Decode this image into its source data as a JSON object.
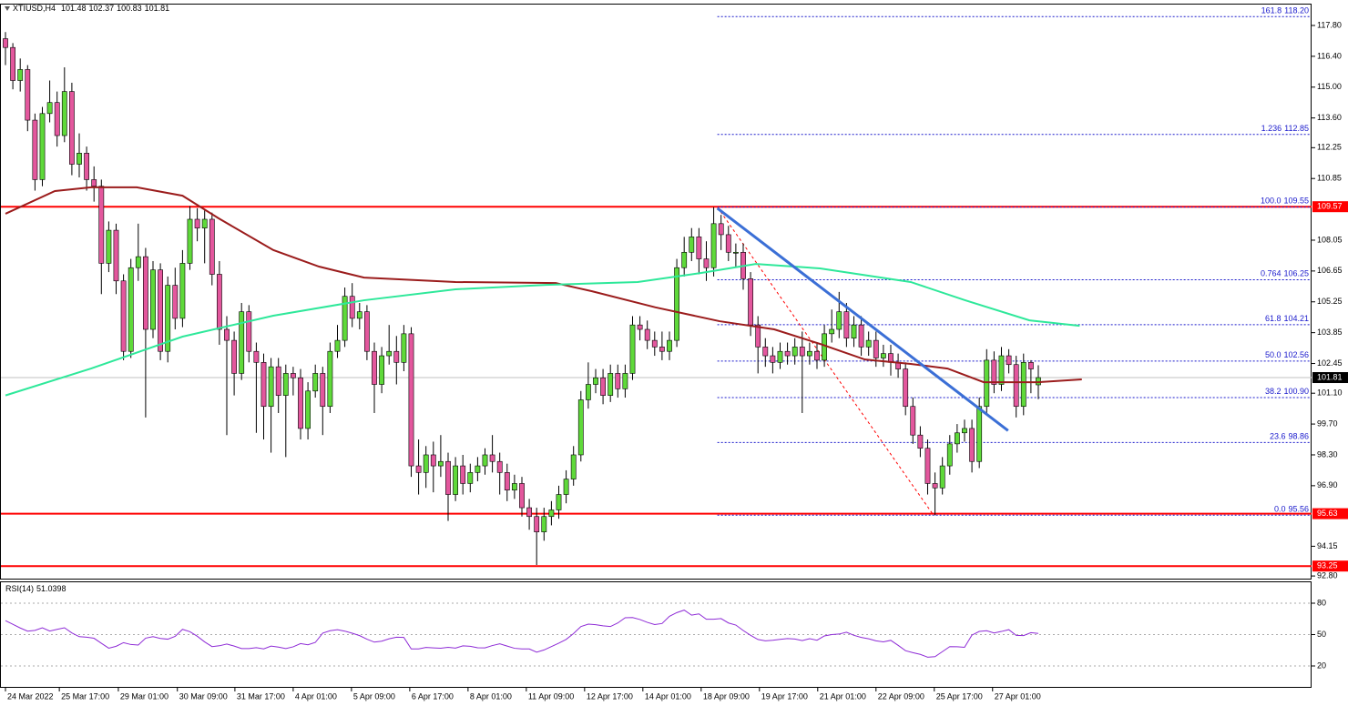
{
  "chart_data": [
    {
      "type": "candlestick",
      "symbol": "XTIUSD,H4",
      "open": [
        117.2,
        116.8,
        115.3,
        115.8,
        113.5,
        110.8,
        113.8,
        114.3,
        112.8,
        114.8,
        111.5,
        112.0,
        110.8,
        110.5,
        107.0,
        108.5,
        106.2,
        103.0,
        106.8,
        107.3,
        104.0,
        106.7,
        103.0,
        106.0,
        104.5,
        107.0,
        109.0,
        108.6,
        109.0,
        106.5,
        104.0,
        103.5,
        102.0,
        104.8,
        103.0,
        102.5,
        100.5,
        102.3,
        101.0,
        102.0,
        101.8,
        99.5,
        101.2,
        102.0,
        100.5,
        103.0,
        103.5,
        105.5,
        104.5,
        104.8,
        103.0,
        101.5,
        102.8,
        103.0,
        102.5,
        103.8,
        97.8,
        97.5,
        98.3,
        97.8,
        98.0,
        96.5,
        97.8,
        97.0,
        97.5,
        97.8,
        98.3,
        98.0,
        97.5,
        96.7,
        97.0,
        95.9,
        95.5,
        94.8,
        95.5,
        95.8,
        96.5,
        97.2,
        98.3,
        100.8,
        101.5,
        101.8,
        101.0,
        102.0,
        101.3,
        102.0,
        104.2,
        104.0,
        103.5,
        103.2,
        103.0,
        103.5,
        106.8,
        107.5,
        108.2,
        107.2,
        106.8,
        108.8,
        108.3,
        107.5,
        107.5,
        106.3,
        104.2,
        103.2,
        102.8,
        102.5,
        103.0,
        102.8,
        103.2,
        102.8,
        103.0,
        102.6,
        103.8,
        104.0,
        104.8,
        103.6,
        104.2,
        103.2,
        103.5,
        102.7,
        102.9,
        102.5,
        102.2,
        100.5,
        99.2,
        98.6,
        97.0,
        96.8,
        97.8,
        98.8,
        99.3,
        99.5,
        98.0,
        100.5,
        102.6,
        101.5,
        102.8,
        102.4,
        100.5,
        102.5,
        101.48
      ],
      "high": [
        117.5,
        117.0,
        116.3,
        116.0,
        113.8,
        114.1,
        115.3,
        114.8,
        115.9,
        115.2,
        112.9,
        112.3,
        111.4,
        110.8,
        108.9,
        108.8,
        106.5,
        107.2,
        108.8,
        107.7,
        107.1,
        107.0,
        106.4,
        106.8,
        107.6,
        109.6,
        109.5,
        109.4,
        109.3,
        107.1,
        104.6,
        103.9,
        105.2,
        105.1,
        103.4,
        102.9,
        102.7,
        102.7,
        102.4,
        102.3,
        102.2,
        101.6,
        102.4,
        102.3,
        103.4,
        104.2,
        105.9,
        106.1,
        105.2,
        105.1,
        103.4,
        103.2,
        104.2,
        103.7,
        104.2,
        104.1,
        99.0,
        98.7,
        98.9,
        99.2,
        98.4,
        98.2,
        98.3,
        97.9,
        98.2,
        98.6,
        99.2,
        98.4,
        97.9,
        97.4,
        97.3,
        96.3,
        95.9,
        95.9,
        96.2,
        96.9,
        97.6,
        98.7,
        101.2,
        102.5,
        102.2,
        102.2,
        102.4,
        102.4,
        102.4,
        104.6,
        104.6,
        104.4,
        103.9,
        103.9,
        103.9,
        107.2,
        108.2,
        108.6,
        108.6,
        108.0,
        109.55,
        109.2,
        108.7,
        107.9,
        107.9,
        106.6,
        104.6,
        103.6,
        103.2,
        103.4,
        103.4,
        103.6,
        103.9,
        103.4,
        103.4,
        104.2,
        104.9,
        105.7,
        105.2,
        104.6,
        104.6,
        103.9,
        103.9,
        103.3,
        103.3,
        102.9,
        102.5,
        100.9,
        99.6,
        99.0,
        97.5,
        98.2,
        99.2,
        99.7,
        99.9,
        99.9,
        100.9,
        103.1,
        103.0,
        103.2,
        103.1,
        102.8,
        102.9,
        102.6,
        102.37
      ],
      "low": [
        116.0,
        114.9,
        114.8,
        113.0,
        110.3,
        110.5,
        113.4,
        112.3,
        112.5,
        111.0,
        110.9,
        110.3,
        109.8,
        105.6,
        106.6,
        105.6,
        102.6,
        102.7,
        106.2,
        100.0,
        103.6,
        102.6,
        102.5,
        104.0,
        104.1,
        106.7,
        108.0,
        107.0,
        106.0,
        103.3,
        99.2,
        101.0,
        101.7,
        102.5,
        99.3,
        99.0,
        98.4,
        100.2,
        98.2,
        101.0,
        99.0,
        99.0,
        100.9,
        99.2,
        100.2,
        102.7,
        103.2,
        104.1,
        104.0,
        102.6,
        100.2,
        101.1,
        102.4,
        101.5,
        102.1,
        97.3,
        96.5,
        96.8,
        96.6,
        97.3,
        95.3,
        96.2,
        96.5,
        96.6,
        97.1,
        97.4,
        97.5,
        96.5,
        96.2,
        96.3,
        95.5,
        94.9,
        93.3,
        94.4,
        95.1,
        95.4,
        96.1,
        96.9,
        98.0,
        100.4,
        101.1,
        100.6,
        100.7,
        100.9,
        100.9,
        101.7,
        103.5,
        103.1,
        102.8,
        102.6,
        102.6,
        103.2,
        106.4,
        107.1,
        106.5,
        106.2,
        106.4,
        107.6,
        107.1,
        106.8,
        105.8,
        103.7,
        102.0,
        102.3,
        102.0,
        102.2,
        102.4,
        102.4,
        100.2,
        102.4,
        102.2,
        102.3,
        103.4,
        103.6,
        103.2,
        103.2,
        102.8,
        102.8,
        102.3,
        102.3,
        101.9,
        101.8,
        100.1,
        98.8,
        98.2,
        96.5,
        95.56,
        96.5,
        97.4,
        98.4,
        98.9,
        97.5,
        97.7,
        100.2,
        101.1,
        101.2,
        102.0,
        100.0,
        100.1,
        101.1,
        100.83
      ],
      "close": [
        116.8,
        115.3,
        115.8,
        113.5,
        110.8,
        113.8,
        114.3,
        112.8,
        114.8,
        111.5,
        112.0,
        110.8,
        110.5,
        107.0,
        108.5,
        106.2,
        103.0,
        106.8,
        107.3,
        104.0,
        106.7,
        103.0,
        106.0,
        104.5,
        107.0,
        109.0,
        108.6,
        109.0,
        106.5,
        104.0,
        103.5,
        102.0,
        104.8,
        103.0,
        102.5,
        100.5,
        102.3,
        101.0,
        102.0,
        101.8,
        99.5,
        101.2,
        102.0,
        100.5,
        103.0,
        103.5,
        105.5,
        104.5,
        104.8,
        103.0,
        101.5,
        102.8,
        103.0,
        102.5,
        103.8,
        97.8,
        97.5,
        98.3,
        97.8,
        98.0,
        96.5,
        97.8,
        97.0,
        97.5,
        97.8,
        98.3,
        98.0,
        97.5,
        96.7,
        97.0,
        95.9,
        95.5,
        94.8,
        95.5,
        95.8,
        96.5,
        97.2,
        98.3,
        100.8,
        101.5,
        101.8,
        101.0,
        102.0,
        101.3,
        102.0,
        104.2,
        104.0,
        103.5,
        103.2,
        103.0,
        103.5,
        106.8,
        107.5,
        108.2,
        107.2,
        106.8,
        108.8,
        108.3,
        107.5,
        107.5,
        106.3,
        104.2,
        103.2,
        102.8,
        102.5,
        103.0,
        102.8,
        103.2,
        102.8,
        103.0,
        102.6,
        103.8,
        104.0,
        104.8,
        103.6,
        104.2,
        103.2,
        103.5,
        102.7,
        102.9,
        102.5,
        102.2,
        100.5,
        99.2,
        98.6,
        97.0,
        96.8,
        97.8,
        98.8,
        99.3,
        99.5,
        98.0,
        100.5,
        102.6,
        101.5,
        102.8,
        102.4,
        100.5,
        102.5,
        102.2,
        101.81
      ],
      "bull_color": "#5fd93a",
      "bear_color": "#e3579d",
      "xlim": [
        -0.741,
        177.04
      ],
      "ylim": [
        92.68,
        118.75
      ],
      "yticks": [
        {
          "value": 117.8,
          "label": "117.80"
        },
        {
          "value": 116.4,
          "label": "116.40"
        },
        {
          "value": 115,
          "label": "115.00"
        },
        {
          "value": 113.6,
          "label": "113.60"
        },
        112.25,
        110.85,
        108.05,
        106.65,
        105.25,
        103.85,
        102.45,
        {
          "value": 101.1,
          "label": "101.10"
        },
        {
          "value": 99.7,
          "label": "99.70"
        },
        {
          "value": 98.3,
          "label": "98.30"
        },
        {
          "value": 96.9,
          "label": "96.90"
        },
        94.15,
        {
          "value": 92.8,
          "label": "92.80"
        }
      ],
      "xticks": [
        {
          "value": 0,
          "label": "24 Mar 2022"
        },
        {
          "value": 7.3,
          "label": "25 Mar 17:00"
        },
        {
          "value": 15.3,
          "label": "29 Mar 01:00"
        },
        {
          "value": 23.3,
          "label": "30 Mar 09:00"
        },
        {
          "value": 31.1,
          "label": "31 Mar 17:00"
        },
        {
          "value": 39,
          "label": "4 Apr 01:00"
        },
        {
          "value": 46.9,
          "label": "5 Apr 09:00"
        },
        {
          "value": 54.8,
          "label": "6 Apr 17:00"
        },
        {
          "value": 62.7,
          "label": "8 Apr 01:00"
        },
        {
          "value": 70.6,
          "label": "11 Apr 09:00"
        },
        {
          "value": 78.5,
          "label": "12 Apr 17:00"
        },
        {
          "value": 86.4,
          "label": "14 Apr 01:00"
        },
        {
          "value": 94.3,
          "label": "18 Apr 09:00"
        },
        {
          "value": 102.2,
          "label": "19 Apr 17:00"
        },
        {
          "value": 110.1,
          "label": "21 Apr 01:00"
        },
        {
          "value": 118,
          "label": "22 Apr 09:00"
        },
        {
          "value": 125.9,
          "label": "25 Apr 17:00"
        },
        {
          "value": 133.8,
          "label": "27 Apr 01:00"
        }
      ],
      "overlays": [
        {
          "type": "line",
          "color": "#9b1c1c",
          "x": [
            0,
            6.7,
            11.6,
            17.8,
            24,
            28.9,
            36.3,
            42.5,
            48.6,
            61,
            74.6,
            79.5,
            88.1,
            96.8,
            104.2,
            110.4,
            116.5,
            122.7,
            127.7,
            132.6,
            140,
            145.9
          ],
          "values": [
            109.25,
            110.28,
            110.45,
            110.45,
            110.07,
            109.04,
            107.6,
            106.85,
            106.35,
            106.15,
            106.1,
            105.73,
            105.0,
            104.37,
            104.0,
            103.34,
            102.63,
            102.43,
            102.22,
            101.6,
            101.6,
            101.73
          ]
        },
        {
          "type": "line",
          "color": "#2ee89a",
          "x": [
            0,
            11.6,
            24,
            36.3,
            48.6,
            61,
            73.3,
            85.7,
            94.3,
            101.7,
            110.4,
            122.7,
            130.1,
            138.8,
            145.6
          ],
          "values": [
            101.0,
            102.22,
            103.67,
            104.62,
            105.32,
            105.82,
            106.02,
            106.15,
            106.56,
            106.97,
            106.77,
            106.15,
            105.32,
            104.41,
            104.16
          ]
        }
      ],
      "hlines": [
        {
          "value": 109.57,
          "color": "#ff0000"
        },
        {
          "value": 95.63,
          "color": "#ff0000"
        },
        {
          "value": 93.25,
          "color": "#ff0000"
        }
      ],
      "price_line": {
        "value": 101.81,
        "color": "#c0c0c0"
      },
      "trendline": {
        "x": [
          96.5,
          135.9
        ],
        "values": [
          109.5,
          99.4
        ],
        "color": "#3b6fd6"
      },
      "fib_line": {
        "x": [
          96.5,
          125.8
        ],
        "values": [
          109.55,
          95.56
        ],
        "color": "#ff0000"
      },
      "fib_color": "#1a1acc",
      "fib_levels": [
        {
          "level": "161.8",
          "price": {
            "value": 118.2,
            "label": "118.20"
          }
        },
        {
          "level": "1.236",
          "price": 112.85
        },
        {
          "level": "100.0",
          "price": 109.55
        },
        {
          "level": "0.764",
          "price": 106.25
        },
        {
          "level": "61.8",
          "price": 104.21
        },
        {
          "level": "50.0",
          "price": 102.56
        },
        {
          "level": "38.2",
          "price": {
            "value": 100.9,
            "label": "100.90"
          }
        },
        {
          "level": "23.6",
          "price": 98.86
        },
        {
          "level": "0.0",
          "price": 95.56
        }
      ]
    },
    {
      "type": "line",
      "name": "RSI(14)",
      "color": "#8e2bd6",
      "values": [
        63.3,
        59.8,
        56.3,
        53.3,
        54,
        56.5,
        53.4,
        55,
        56.5,
        51.6,
        48,
        47.5,
        46.5,
        41.7,
        37,
        38.8,
        42.3,
        40.5,
        40,
        46.6,
        48,
        46.3,
        45.6,
        48.3,
        55,
        52.8,
        48.4,
        43,
        38.5,
        39.3,
        41,
        39,
        36.6,
        36.6,
        37.5,
        36.3,
        39,
        38,
        36.6,
        38.3,
        41.4,
        40.2,
        42.5,
        51.4,
        53.7,
        54.7,
        53.3,
        51.3,
        49,
        45.6,
        42.8,
        43.7,
        46,
        47.5,
        47.3,
        36.3,
        36.3,
        37.7,
        37.3,
        37,
        37.8,
        37.1,
        39.2,
        38.8,
        37.4,
        37.3,
        39.5,
        41.2,
        39,
        36.9,
        36.3,
        36.3,
        33.2,
        35.3,
        38.5,
        41.8,
        45.4,
        51,
        57.7,
        60,
        59.5,
        58.4,
        57.7,
        61.1,
        66.1,
        66.3,
        64.4,
        61.7,
        59.6,
        60.6,
        67.5,
        71,
        73.4,
        68.6,
        69.8,
        64.7,
        64.7,
        65.3,
        61.1,
        59.1,
        53.9,
        49.3,
        45.3,
        44,
        44.6,
        45.4,
        46.2,
        45.8,
        44.3,
        46.1,
        44.6,
        48.7,
        50,
        50.5,
        52.3,
        49.3,
        47.3,
        46,
        44,
        43.1,
        44.5,
        39.7,
        34.6,
        32.7,
        31.1,
        28.4,
        28.9,
        33.7,
        38.5,
        38.4,
        37.8,
        49.5,
        53,
        53.7,
        51.5,
        53,
        54.7,
        49.2,
        49,
        51.8,
        51.0398
      ],
      "xlim": [
        -0.741,
        177.04
      ],
      "ylim": [
        0,
        100
      ],
      "yticks": [
        20,
        50,
        80
      ],
      "grid": true
    }
  ]
}
